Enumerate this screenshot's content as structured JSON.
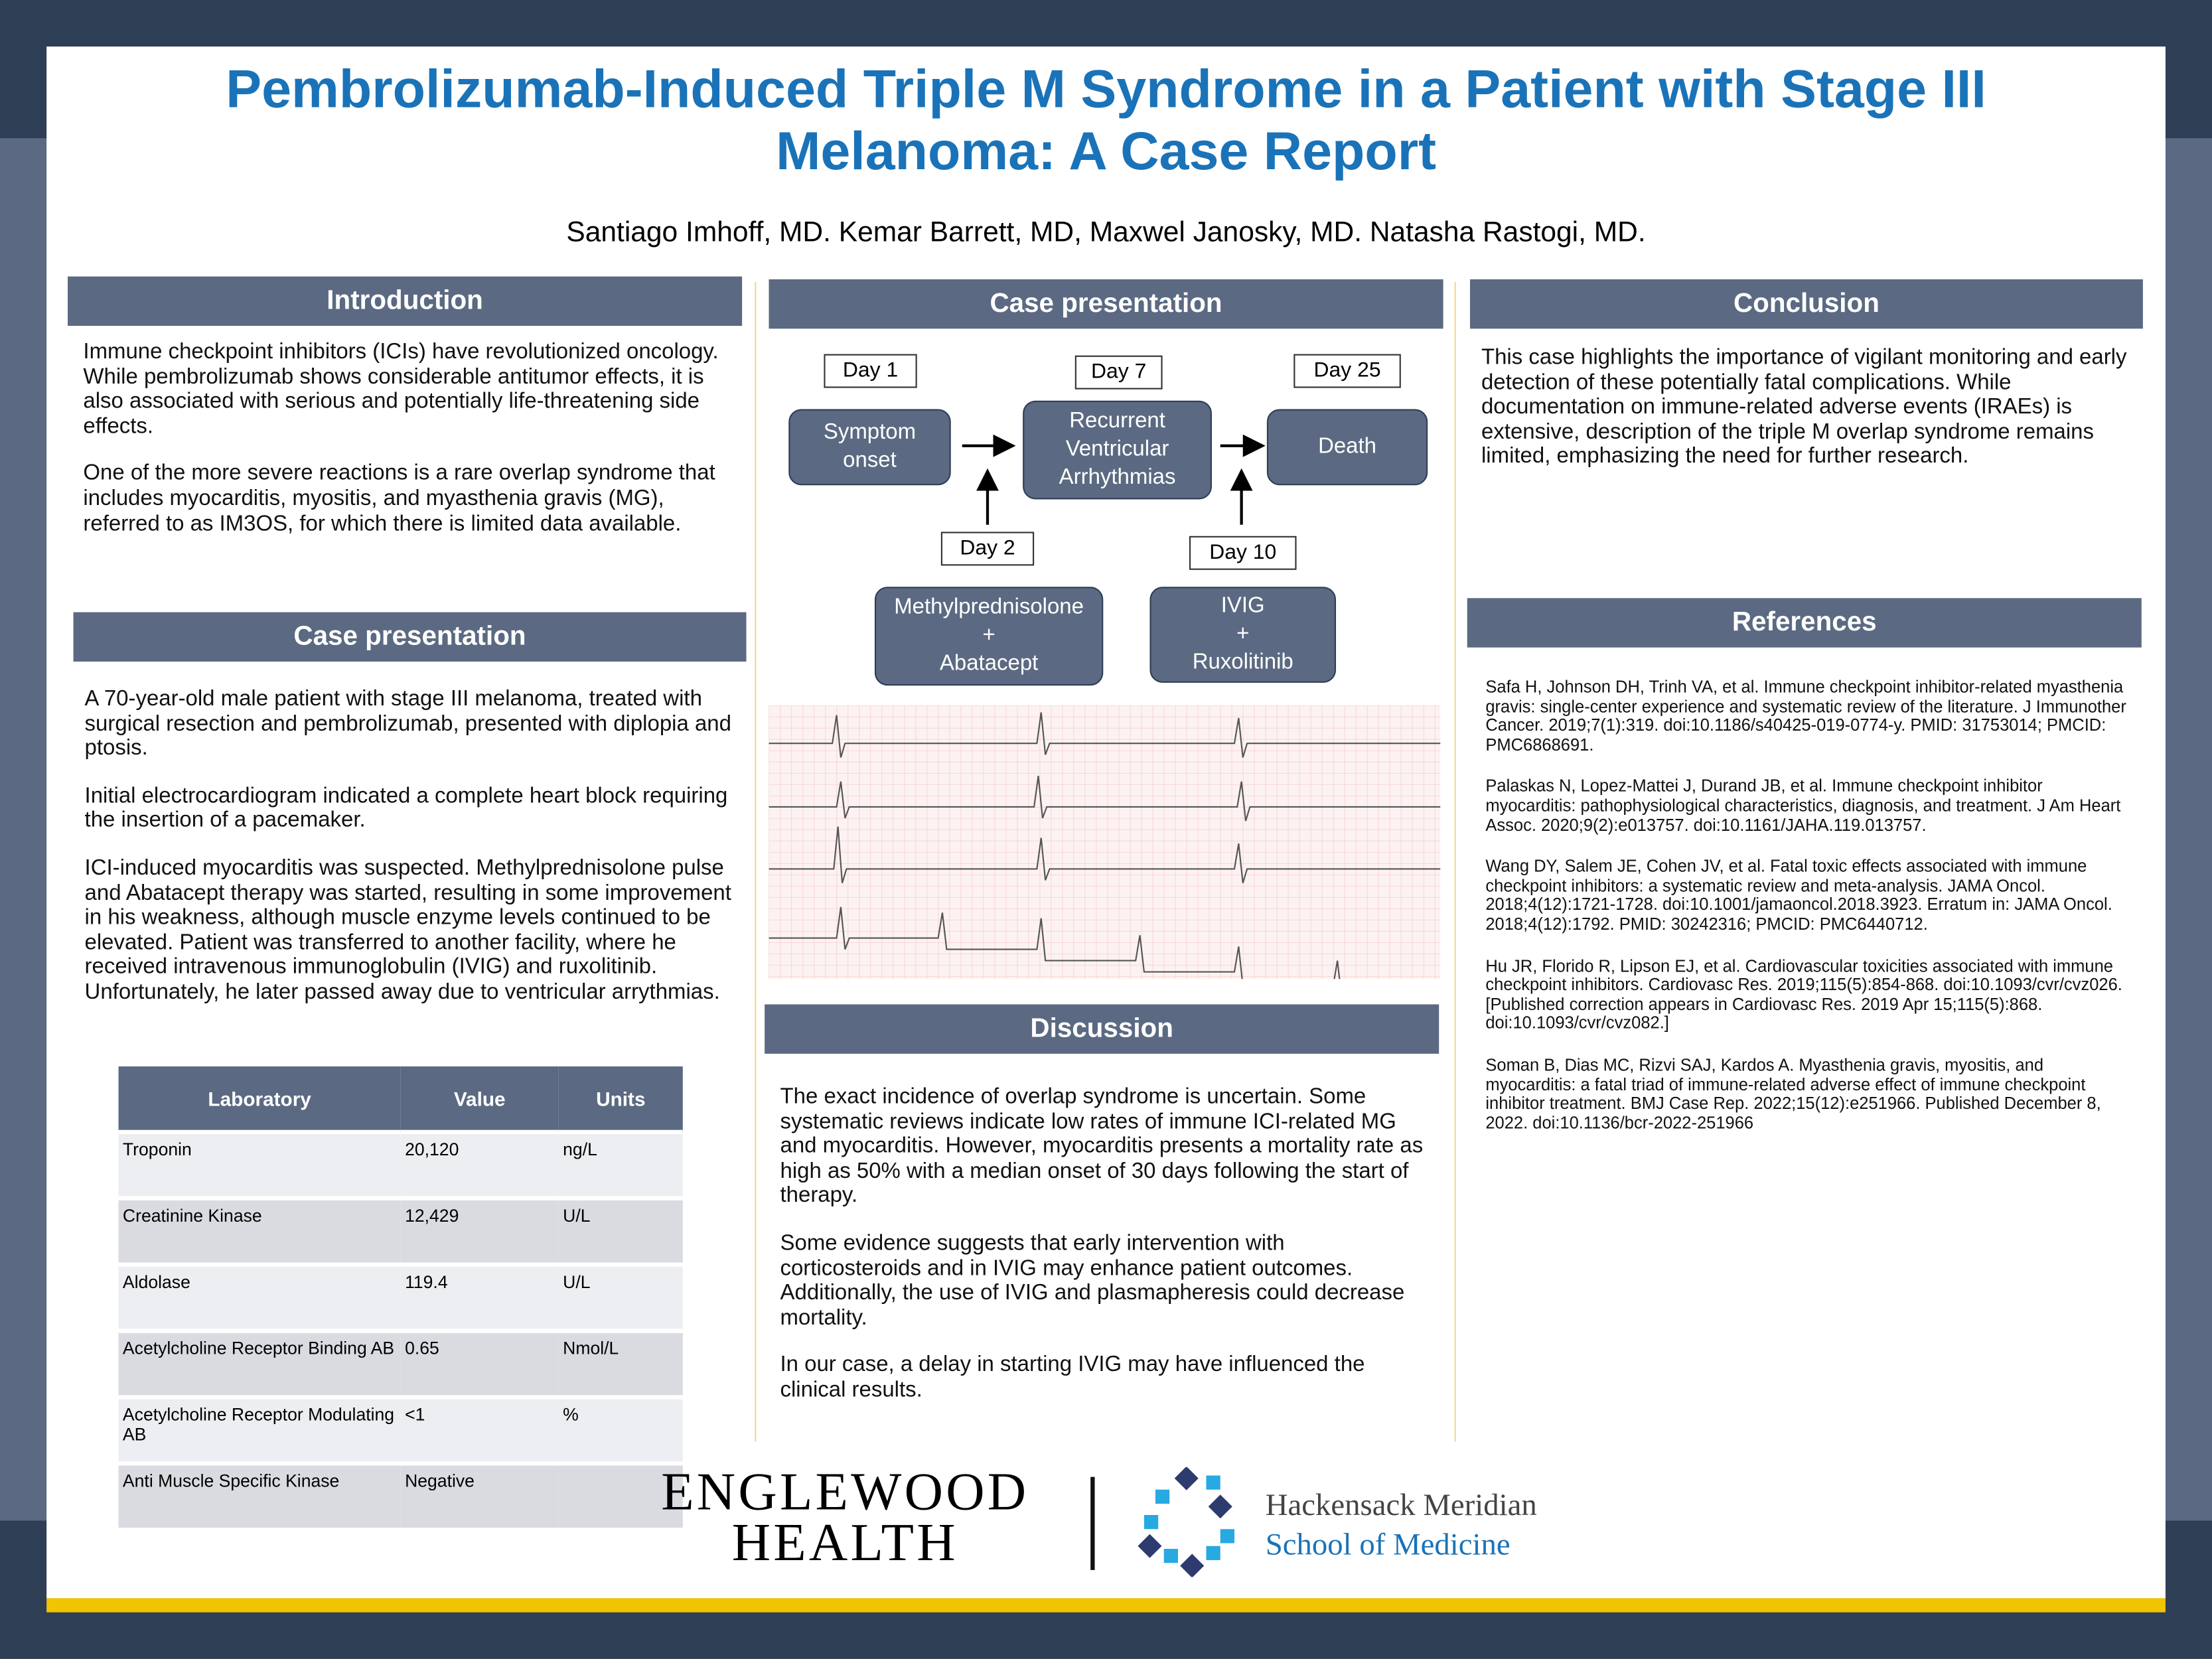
{
  "header": {
    "title": "Pembrolizumab-Induced Triple M Syndrome in a Patient with Stage III Melanoma: A Case Report",
    "authors": "Santiago Imhoff, MD. Kemar Barrett, MD, Maxwel Janosky, MD. Natasha Rastogi, MD."
  },
  "introduction": {
    "heading": "Introduction",
    "paragraphs": [
      "Immune checkpoint inhibitors (ICIs) have revolutionized oncology. While pembrolizumab shows considerable antitumor effects, it is also associated with serious and potentially life-threatening side effects.",
      "One of the more severe reactions is a rare overlap syndrome that includes myocarditis, myositis, and myasthenia gravis (MG), referred to as IM3OS, for which there is limited data available."
    ]
  },
  "case_text": {
    "heading": "Case presentation",
    "paragraphs": [
      "A 70-year-old male patient with stage III melanoma, treated with surgical resection and pembrolizumab, presented with diplopia and ptosis.",
      "Initial electrocardiogram indicated a complete heart block requiring the insertion of a pacemaker.",
      "ICI-induced myocarditis was suspected. Methylprednisolone pulse and Abatacept therapy was started, resulting in some improvement in his weakness, although muscle enzyme levels continued to be elevated. Patient was transferred to another facility, where he received intravenous immunoglobulin (IVIG) and ruxolitinib. Unfortunately, he later passed away due to ventricular arrythmias."
    ]
  },
  "table": {
    "headers": [
      "Laboratory",
      "Value",
      "Units"
    ],
    "rows": [
      [
        "Troponin",
        "20,120",
        "ng/L"
      ],
      [
        "Creatinine Kinase",
        "12,429",
        "U/L"
      ],
      [
        "Aldolase",
        "119.4",
        "U/L"
      ],
      [
        "Acetylcholine Receptor Binding AB",
        "0.65",
        "Nmol/L"
      ],
      [
        "Acetylcholine Receptor Modulating AB",
        "<1",
        "%"
      ],
      [
        "Anti Muscle Specific Kinase",
        "Negative"
      ]
    ]
  },
  "timeline": {
    "heading": "Case presentation",
    "nodes": [
      {
        "day": "Day 1",
        "lines": [
          "Symptom",
          "onset"
        ]
      },
      {
        "day": "Day 7",
        "lines": [
          "Recurrent",
          "Ventricular",
          "Arrhythmias"
        ]
      },
      {
        "day": "Day 25",
        "lines": [
          "Death"
        ]
      },
      {
        "day": "Day 2",
        "lines": [
          "Methylprednisolone",
          "+",
          "Abatacept"
        ]
      },
      {
        "day": "Day 10",
        "lines": [
          "IVIG",
          "+",
          "Ruxolitinib"
        ]
      }
    ]
  },
  "discussion": {
    "heading": "Discussion",
    "paragraphs": [
      "The exact incidence of overlap syndrome is uncertain. Some systematic reviews indicate low rates of immune ICI-related MG and myocarditis. However, myocarditis presents a mortality rate as high as 50% with a median onset of 30 days following the start of therapy.",
      "Some evidence suggests that early intervention with corticosteroids and in IVIG may enhance patient outcomes. Additionally, the use of IVIG and plasmapheresis could decrease mortality.",
      "In our case, a delay in starting IVIG may have influenced the clinical results."
    ]
  },
  "conclusion": {
    "heading": "Conclusion",
    "paragraphs": [
      "This case highlights the importance of vigilant monitoring and early detection of these potentially fatal complications. While documentation on immune-related adverse events (IRAEs) is extensive, description of the triple M overlap syndrome remains limited, emphasizing the need for further research."
    ]
  },
  "references": {
    "heading": "References",
    "paragraphs": [
      "Safa H, Johnson DH, Trinh VA, et al. Immune checkpoint inhibitor-related myasthenia gravis: single-center experience and systematic review of the literature. J Immunother Cancer. 2019;7(1):319. doi:10.1186/s40425-019-0774-y. PMID: 31753014; PMCID: PMC6868691.",
      "Palaskas N, Lopez-Mattei J, Durand JB, et al. Immune checkpoint inhibitor myocarditis: pathophysiological characteristics, diagnosis, and treatment. J Am Heart Assoc. 2020;9(2):e013757. doi:10.1161/JAHA.119.013757.",
      "Wang DY, Salem JE, Cohen JV, et al. Fatal toxic effects associated with immune checkpoint inhibitors: a systematic review and meta-analysis. JAMA Oncol. 2018;4(12):1721-1728. doi:10.1001/jamaoncol.2018.3923. Erratum in: JAMA Oncol. 2018;4(12):1792. PMID: 30242316; PMCID: PMC6440712.",
      "Hu JR, Florido R, Lipson EJ, et al. Cardiovascular toxicities associated with immune checkpoint inhibitors. Cardiovasc Res. 2019;115(5):854-868. doi:10.1093/cvr/cvz026. [Published correction appears in Cardiovasc Res. 2019 Apr 15;115(5):868. doi:10.1093/cvr/cvz082.]",
      "Soman B, Dias MC, Rizvi SAJ, Kardos A. Myasthenia gravis, myositis, and myocarditis: a fatal triad of immune-related adverse effect of immune checkpoint inhibitor treatment. BMJ Case Rep. 2022;15(12):e251966. Published December 8, 2022. doi:10.1136/bcr-2022-251966"
    ]
  },
  "logos": {
    "left": [
      "ENGLEWOOD",
      "HEALTH"
    ],
    "right": [
      "Hackensack Meridian",
      "School of Medicine"
    ]
  }
}
